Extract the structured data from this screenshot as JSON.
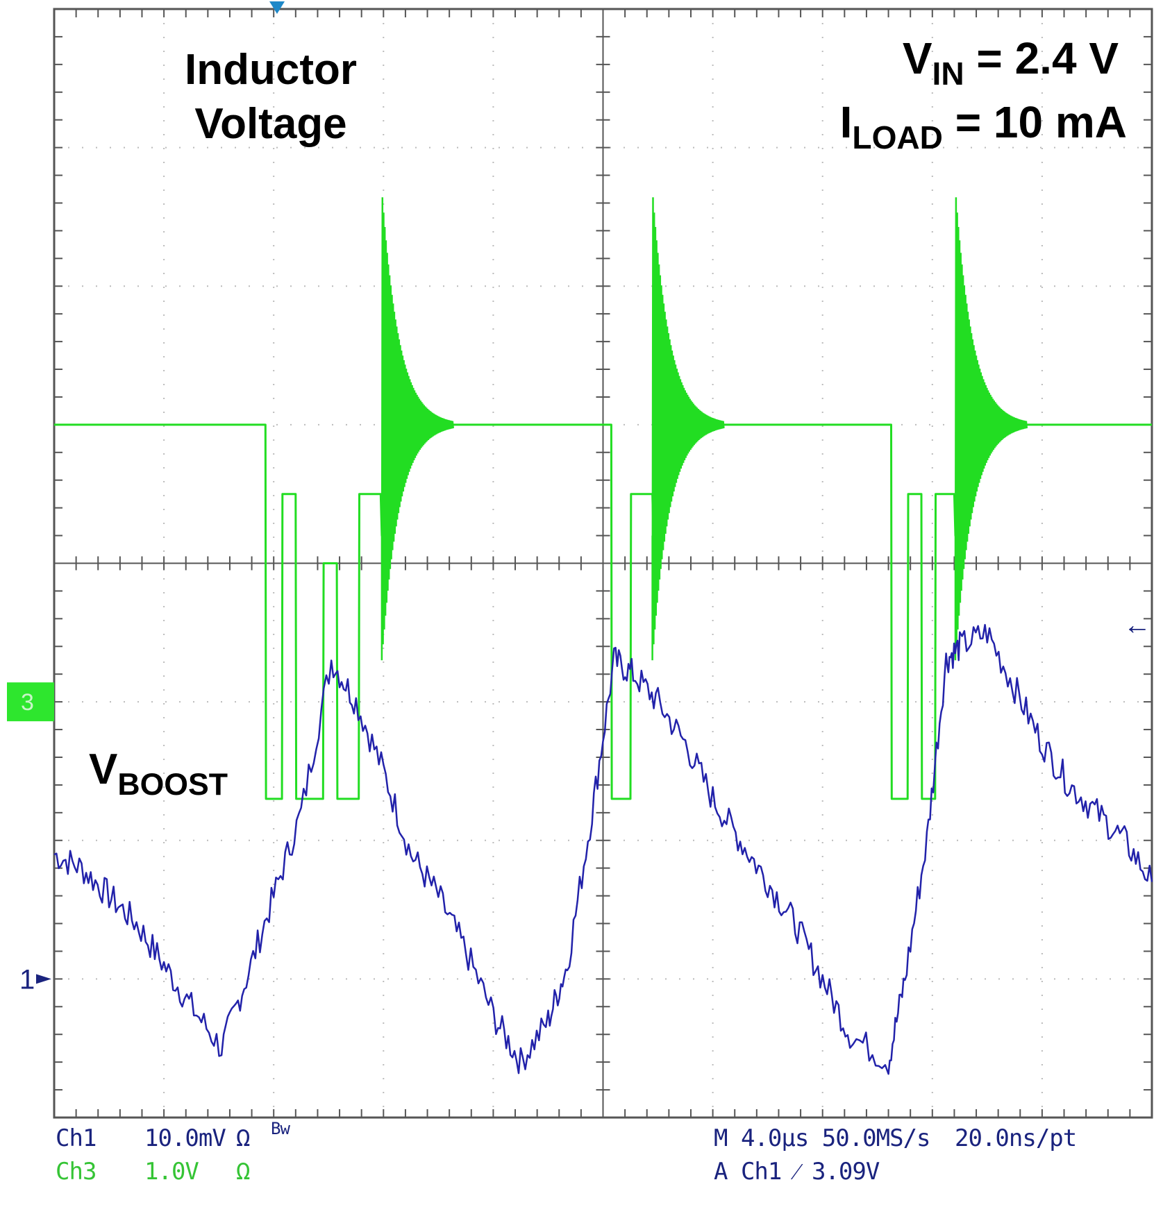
{
  "colors": {
    "background": "#ffffff",
    "grid": "#555555",
    "ch1": "#2222aa",
    "ch3": "#22dd22",
    "ch3_marker": "#2ee62e",
    "trigger_marker": "#1e88c8",
    "text_ch1": "#1a237e",
    "text_ch3": "#35c435"
  },
  "annotations": {
    "inductor_line1": "Inductor",
    "inductor_line2": "Voltage",
    "vin_main": "V",
    "vin_sub": "IN",
    "vin_value": " = 2.4 V",
    "iload_main": "I",
    "iload_sub": "LOAD",
    "iload_value": " = 10 mA",
    "vboost_main": "V",
    "vboost_sub": "BOOST"
  },
  "markers": {
    "ch3_label": "3",
    "ch1_label": "1",
    "arrow": "←"
  },
  "status": {
    "ch1": "Ch1",
    "ch1_scale": "10.0mV",
    "ch1_term": "Ω",
    "ch1_bw": "Bw",
    "ch3": "Ch3",
    "ch3_scale": "1.0V",
    "ch3_term": "Ω",
    "timebase": "M 4.0µs 50.0MS/s",
    "resolution": "20.0ns/pt",
    "trigger": "A  Ch1  ⁄  3.09V"
  },
  "chart_data": {
    "type": "line",
    "title": "Inductor Voltage and VBOOST",
    "x_unit": "µs",
    "x_range": [
      0,
      40
    ],
    "x_divisions": 10,
    "y_divisions": 8,
    "grid": true,
    "series": [
      {
        "name": "Ch3 Inductor Voltage",
        "scale": "1.0 V/div",
        "ground_div": 3.0,
        "x": [
          0,
          7.7,
          7.72,
          8.3,
          8.32,
          8.8,
          8.82,
          9.8,
          9.82,
          10.3,
          10.32,
          11.1,
          11.12,
          11.9,
          11.94,
          12.6,
          13.3,
          14.5,
          20.3,
          20.32,
          21.0,
          21.02,
          21.8,
          21.84,
          22.5,
          23.2,
          24.3,
          30.5,
          30.52,
          31.1,
          31.12,
          31.6,
          31.62,
          32.1,
          32.12,
          32.8,
          32.84,
          33.5,
          34.2,
          35.3,
          40
        ],
        "y": [
          5.0,
          5.0,
          2.3,
          2.3,
          4.5,
          4.5,
          2.3,
          2.3,
          4.0,
          4.0,
          2.3,
          2.3,
          4.5,
          4.5,
          4.2,
          5.0,
          5.0,
          5.0,
          5.0,
          2.3,
          2.3,
          4.5,
          4.5,
          4.2,
          5.0,
          5.0,
          5.0,
          5.0,
          2.3,
          2.3,
          4.5,
          4.5,
          2.3,
          2.3,
          4.5,
          4.5,
          4.2,
          5.0,
          5.0,
          5.0,
          5.0
        ]
      },
      {
        "name": "Ch1 VBOOST",
        "scale": "10.0 mV/div",
        "ground_div": 1.0,
        "x": [
          0,
          1,
          2,
          3,
          4,
          5,
          6.1,
          7,
          8,
          9,
          10.1,
          11,
          12,
          13,
          14,
          15,
          16.1,
          17,
          18,
          18.7,
          19.6,
          20.4,
          21.1,
          22,
          23,
          24,
          25,
          26,
          27,
          28,
          29,
          30.4,
          31,
          31.8,
          32.5,
          33,
          34,
          35,
          36,
          37,
          38,
          39,
          40
        ],
        "y": [
          1.9,
          1.8,
          1.6,
          1.4,
          1.1,
          0.8,
          0.5,
          1.0,
          1.6,
          2.2,
          3.3,
          3.0,
          2.5,
          1.9,
          1.6,
          1.2,
          0.7,
          0.4,
          0.7,
          1.1,
          2.2,
          3.3,
          3.2,
          3.0,
          2.7,
          2.3,
          2.0,
          1.7,
          1.4,
          1.0,
          0.6,
          0.4,
          1.0,
          2.0,
          3.3,
          3.4,
          3.5,
          3.1,
          2.7,
          2.4,
          2.2,
          2.0,
          1.7
        ]
      }
    ]
  }
}
